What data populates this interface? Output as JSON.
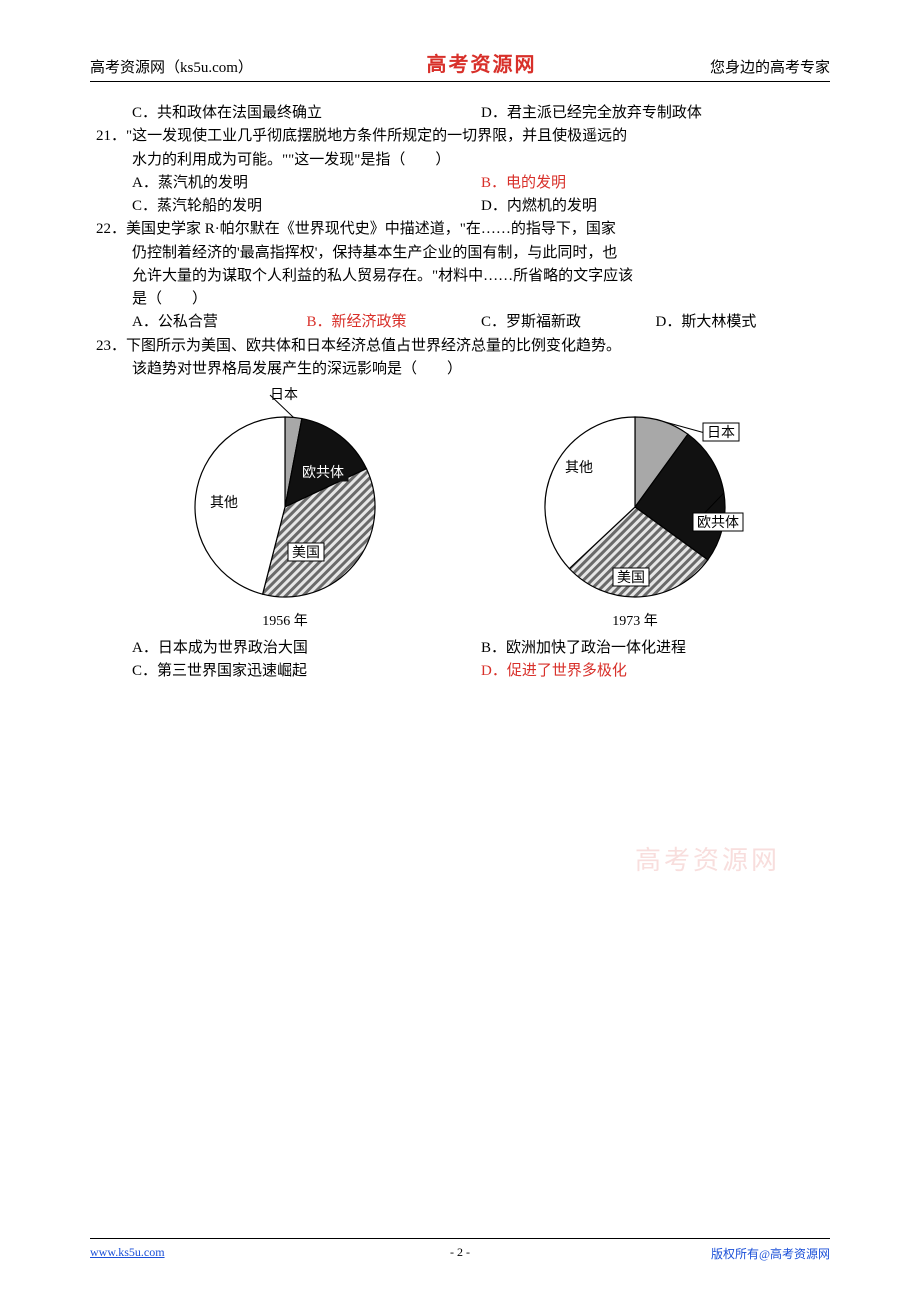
{
  "header": {
    "left": "高考资源网（ks5u.com）",
    "center": "高考资源网",
    "right": "您身边的高考专家"
  },
  "q20opts": {
    "c": "C．共和政体在法国最终确立",
    "d": "D．君主派已经完全放弃专制政体"
  },
  "q21": {
    "stem": "21．\"这一发现使工业几乎彻底摆脱地方条件所规定的一切界限，并且使极遥远的",
    "stem2": "水力的利用成为可能。\"\"这一发现\"是指（　　）",
    "a": "A．蒸汽机的发明",
    "b": "B．电的发明",
    "c": "C．蒸汽轮船的发明",
    "d": "D．内燃机的发明"
  },
  "q22": {
    "stem1": "22．美国史学家 R·帕尔默在《世界现代史》中描述道，\"在……的指导下，国家",
    "stem2": "仍控制着经济的'最高指挥权'，保持基本生产企业的国有制，与此同时，也",
    "stem3": "允许大量的为谋取个人利益的私人贸易存在。\"材料中……所省略的文字应该",
    "stem4": "是（　　）",
    "a": "A．公私合营",
    "b": "B．新经济政策",
    "c": "C．罗斯福新政",
    "d": "D．斯大林模式"
  },
  "q23": {
    "stem1": "23．下图所示为美国、欧共体和日本经济总值占世界经济总量的比例变化趋势。",
    "stem2": "该趋势对世界格局发展产生的深远影响是（　　）",
    "a": "A．日本成为世界政治大国",
    "b": "B．欧洲加快了政治一体化进程",
    "c": "C．第三世界国家迅速崛起",
    "d": "D．促进了世界多极化"
  },
  "chart_labels": {
    "japan": "日本",
    "ec": "欧共体",
    "us": "美国",
    "other": "其他",
    "y1956": "1956 年",
    "y1973": "1973 年"
  },
  "pie1956": {
    "type": "pie",
    "slices": [
      {
        "label": "japan",
        "value": 3,
        "fill": "#a8a8a8"
      },
      {
        "label": "ec",
        "value": 15,
        "fill": "#111111"
      },
      {
        "label": "us",
        "value": 36,
        "fill": "hatch"
      },
      {
        "label": "other",
        "value": 46,
        "fill": "#ffffff"
      }
    ],
    "stroke": "#000000",
    "background": "#ffffff",
    "radius": 90
  },
  "pie1973": {
    "type": "pie",
    "slices": [
      {
        "label": "japan",
        "value": 10,
        "fill": "#a8a8a8"
      },
      {
        "label": "ec",
        "value": 25,
        "fill": "#111111"
      },
      {
        "label": "us",
        "value": 28,
        "fill": "hatch"
      },
      {
        "label": "other",
        "value": 37,
        "fill": "#ffffff"
      }
    ],
    "stroke": "#000000",
    "background": "#ffffff",
    "radius": 90
  },
  "watermark": "高考资源网",
  "footer": {
    "left": "www.ks5u.com",
    "center": "- 2 -",
    "right": "版权所有@高考资源网"
  },
  "colors": {
    "red": "#d8302a",
    "link": "#1a4fd8",
    "text": "#000000",
    "rule": "#000000",
    "hatch_dark": "#6a6a6a",
    "hatch_light": "#e6e6e6"
  }
}
